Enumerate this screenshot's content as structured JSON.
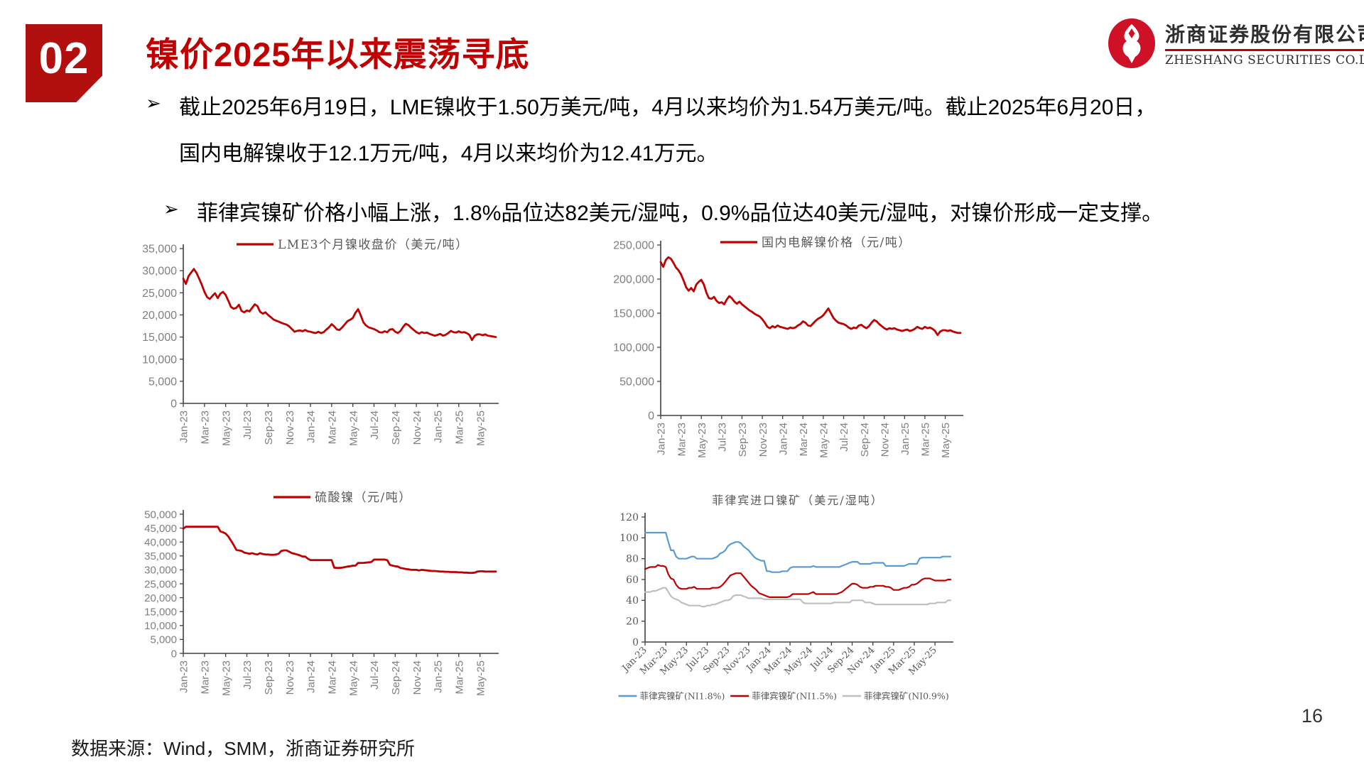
{
  "header": {
    "section_number": "02",
    "title": "镍价2025年以来震荡寻底",
    "logo_cn": "浙商证券股份有限公司",
    "logo_en": "ZHESHANG SECURITIES CO.LTD"
  },
  "bullets": {
    "marker": "➢",
    "b1_line1": "截止2025年6月19日，LME镍收于1.50万美元/吨，4月以来均价为1.54万美元/吨。截止2025年6月20日，",
    "b1_line2": "国内电解镍收于12.1万元/吨，4月以来均价为12.41万元。",
    "b2": "菲律宾镍矿价格小幅上涨，1.8%品位达82美元/湿吨，0.9%品位达40美元/湿吨，对镍价形成一定支撑。"
  },
  "footer": {
    "source": "数据来源：Wind，SMM，浙商证券研究所",
    "page_number": "16"
  },
  "colors": {
    "accent_red": "#C00000",
    "line_blue": "#5B9BD5",
    "line_gray": "#BFBFBF"
  },
  "chart_data": [
    {
      "id": "lme-3m-nickel-close",
      "type": "line",
      "legend_position": "top",
      "ylim": [
        0,
        35000
      ],
      "ystep": 5000,
      "y_format": "comma",
      "x_tick_labels": [
        "Jan-23",
        "Mar-23",
        "May-23",
        "Jul-23",
        "Sep-23",
        "Nov-23",
        "Jan-24",
        "Mar-24",
        "May-24",
        "Jul-24",
        "Sep-24",
        "Nov-24",
        "Jan-25",
        "Mar-25",
        "May-25"
      ],
      "series": [
        {
          "name": "LME3个月镍收盘价（美元/吨）",
          "color": "#C00000",
          "values": [
            28200,
            27000,
            28800,
            29600,
            30400,
            29500,
            28200,
            26800,
            25200,
            24000,
            23600,
            24300,
            24900,
            23800,
            24800,
            25200,
            24500,
            23200,
            21800,
            21400,
            21600,
            22300,
            20900,
            20600,
            21000,
            20800,
            21600,
            22400,
            22000,
            20700,
            20300,
            20600,
            20000,
            19500,
            19000,
            18700,
            18500,
            18200,
            18000,
            17800,
            17400,
            16800,
            16200,
            16400,
            16500,
            16300,
            16600,
            16300,
            16200,
            16000,
            15900,
            16200,
            15900,
            16100,
            16700,
            17200,
            17900,
            17400,
            16700,
            16600,
            17200,
            17900,
            18600,
            18900,
            19300,
            20500,
            21300,
            19900,
            18300,
            17600,
            17200,
            17000,
            16800,
            16500,
            16100,
            16000,
            16300,
            16100,
            16700,
            16800,
            16200,
            15900,
            16400,
            17300,
            18000,
            17700,
            17100,
            16600,
            16100,
            15800,
            16100,
            15900,
            16000,
            15700,
            15500,
            15300,
            15500,
            15700,
            15300,
            15500,
            15900,
            16400,
            16100,
            16000,
            16300,
            16000,
            16100,
            15900,
            15500,
            14300,
            15300,
            15600,
            15600,
            15400,
            15600,
            15300,
            15200,
            15100,
            15000
          ]
        }
      ]
    },
    {
      "id": "cn-electrolytic-nickel",
      "type": "line",
      "legend_position": "top",
      "ylim": [
        0,
        250000
      ],
      "ystep": 50000,
      "y_format": "comma",
      "x_tick_labels": [
        "Jan-23",
        "Mar-23",
        "May-23",
        "Jul-23",
        "Sep-23",
        "Nov-23",
        "Jan-24",
        "Mar-24",
        "May-24",
        "Jul-24",
        "Sep-24",
        "Nov-24",
        "Jan-25",
        "Mar-25",
        "May-25"
      ],
      "series": [
        {
          "name": "国内电解镍价格（元/吨）",
          "color": "#C00000",
          "values": [
            225000,
            218000,
            228000,
            232000,
            230000,
            224000,
            217000,
            213000,
            207000,
            198000,
            188000,
            183000,
            187000,
            182000,
            192000,
            196000,
            199000,
            192000,
            180000,
            172000,
            171000,
            174000,
            168000,
            165000,
            166000,
            163000,
            170000,
            175000,
            172000,
            167000,
            164000,
            167000,
            163000,
            160000,
            157000,
            154000,
            152000,
            149000,
            147000,
            145000,
            141000,
            136000,
            130000,
            128000,
            131000,
            129000,
            132000,
            130000,
            129000,
            128000,
            127000,
            129000,
            128000,
            129000,
            132000,
            134000,
            138000,
            136000,
            132000,
            131000,
            135000,
            139000,
            142000,
            144000,
            147000,
            152000,
            157000,
            150000,
            143000,
            139000,
            136000,
            135000,
            134000,
            132000,
            129000,
            127000,
            129000,
            128000,
            132000,
            133000,
            130000,
            128000,
            131000,
            136000,
            140000,
            138000,
            134000,
            131000,
            128000,
            126000,
            128000,
            127000,
            128000,
            126000,
            125000,
            124000,
            125000,
            126000,
            124000,
            125000,
            127000,
            130000,
            128000,
            127000,
            130000,
            128000,
            129000,
            127000,
            124000,
            118000,
            123000,
            125000,
            125000,
            124000,
            125000,
            123000,
            122000,
            121000,
            121000
          ]
        }
      ]
    },
    {
      "id": "nickel-sulfate",
      "type": "line",
      "legend_position": "top",
      "ylim": [
        0,
        50000
      ],
      "ystep": 5000,
      "y_format": "comma",
      "x_tick_labels": [
        "Jan-23",
        "Mar-23",
        "May-23",
        "Jul-23",
        "Sep-23",
        "Nov-23",
        "Jan-24",
        "Mar-24",
        "May-24",
        "Jul-24",
        "Sep-24",
        "Nov-24",
        "Jan-25",
        "Mar-25",
        "May-25"
      ],
      "series": [
        {
          "name": "硫酸镍（元/吨）",
          "color": "#C00000",
          "values": [
            44800,
            45500,
            45500,
            45500,
            45500,
            45500,
            45500,
            45500,
            45500,
            45500,
            45500,
            45500,
            45500,
            45500,
            43800,
            43500,
            43000,
            42000,
            40500,
            39000,
            37200,
            37000,
            36800,
            36200,
            36000,
            35800,
            36000,
            35700,
            35500,
            36000,
            35700,
            35500,
            35500,
            35400,
            35400,
            35500,
            35800,
            36800,
            37000,
            37000,
            36500,
            36000,
            35800,
            35500,
            35200,
            34800,
            34800,
            34000,
            33500,
            33500,
            33500,
            33500,
            33500,
            33500,
            33500,
            33500,
            33500,
            30800,
            30700,
            30700,
            30800,
            31000,
            31200,
            31300,
            31500,
            31500,
            32500,
            32500,
            32500,
            32600,
            32700,
            32800,
            33700,
            33700,
            33700,
            33700,
            33700,
            33500,
            31800,
            31500,
            31300,
            31200,
            30700,
            30500,
            30300,
            30200,
            30000,
            30000,
            30000,
            29800,
            30000,
            29900,
            29800,
            29700,
            29600,
            29600,
            29500,
            29400,
            29400,
            29300,
            29300,
            29200,
            29200,
            29200,
            29100,
            29100,
            29000,
            29000,
            28900,
            28900,
            29000,
            29400,
            29500,
            29500,
            29400,
            29400,
            29400,
            29400,
            29400
          ]
        }
      ]
    },
    {
      "id": "philippine-nickel-ore",
      "type": "line",
      "title": "菲律宾进口镍矿（美元/湿吨）",
      "legend_position": "bottom",
      "ylim": [
        0,
        120
      ],
      "ystep": 20,
      "y_format": "plain",
      "x_tick_labels": [
        "Jan-23",
        "Mar-23",
        "May-23",
        "Jul-23",
        "Sep-23",
        "Nov-23",
        "Jan-24",
        "Mar-24",
        "May-24",
        "Jul-24",
        "Sep-24",
        "Nov-24",
        "Jan-25",
        "Mar-25",
        "May-25"
      ],
      "series": [
        {
          "name": "菲律宾镍矿(NI1.8%)",
          "color": "#5B9BD5",
          "values": [
            105,
            105,
            105,
            105,
            105,
            105,
            105,
            105,
            105,
            96,
            88,
            88,
            82,
            80,
            80,
            80,
            80,
            81,
            82,
            82,
            80,
            80,
            80,
            80,
            80,
            80,
            80,
            81,
            82,
            85,
            86,
            88,
            92,
            94,
            95,
            96,
            96,
            95,
            92,
            90,
            88,
            85,
            82,
            80,
            79,
            78,
            78,
            68,
            68,
            67,
            67,
            67,
            67,
            68,
            68,
            68,
            71,
            72,
            72,
            72,
            72,
            72,
            72,
            72,
            72,
            73,
            72,
            72,
            72,
            72,
            72,
            72,
            72,
            72,
            72,
            72,
            73,
            74,
            75,
            76,
            77,
            77,
            77,
            75,
            75,
            75,
            75,
            75,
            76,
            76,
            76,
            76,
            76,
            73,
            73,
            73,
            73,
            73,
            73,
            73,
            73,
            74,
            75,
            75,
            75,
            75,
            80,
            81,
            81,
            81,
            81,
            81,
            81,
            81,
            81,
            82,
            82,
            82,
            82
          ]
        },
        {
          "name": "菲律宾镍矿(NI1.5%)",
          "color": "#C00000",
          "values": [
            70,
            71,
            72,
            72,
            72,
            74,
            73,
            73,
            72,
            65,
            61,
            60,
            55,
            52,
            51,
            51,
            51,
            52,
            52,
            53,
            51,
            51,
            51,
            51,
            51,
            51,
            52,
            52,
            52,
            53,
            55,
            58,
            61,
            64,
            65,
            66,
            66,
            66,
            63,
            60,
            57,
            54,
            52,
            50,
            47,
            46,
            45,
            44,
            43,
            43,
            43,
            43,
            43,
            43,
            43,
            43,
            44,
            46,
            46,
            46,
            46,
            46,
            46,
            46,
            47,
            48,
            46,
            46,
            46,
            46,
            46,
            46,
            46,
            46,
            46,
            47,
            48,
            50,
            52,
            54,
            56,
            56,
            55,
            53,
            52,
            52,
            52,
            53,
            53,
            54,
            54,
            54,
            54,
            53,
            53,
            52,
            50,
            50,
            50,
            51,
            52,
            52,
            53,
            55,
            55,
            56,
            58,
            60,
            61,
            61,
            61,
            60,
            59,
            59,
            59,
            59,
            59,
            60,
            60
          ]
        },
        {
          "name": "菲律宾镍矿(NI0.9%)",
          "color": "#BFBFBF",
          "values": [
            48,
            48,
            48,
            49,
            49,
            50,
            51,
            52,
            52,
            48,
            44,
            42,
            41,
            40,
            38,
            37,
            36,
            35,
            35,
            35,
            35,
            35,
            34,
            34,
            35,
            35,
            36,
            36,
            37,
            38,
            39,
            40,
            40,
            41,
            44,
            45,
            45,
            45,
            44,
            43,
            42,
            42,
            42,
            42,
            42,
            42,
            41,
            41,
            41,
            41,
            41,
            41,
            41,
            41,
            41,
            41,
            41,
            41,
            41,
            41,
            41,
            38,
            37,
            37,
            37,
            37,
            37,
            37,
            37,
            37,
            37,
            37,
            37,
            38,
            38,
            38,
            38,
            38,
            38,
            38,
            40,
            40,
            40,
            40,
            40,
            38,
            38,
            38,
            37,
            36,
            36,
            36,
            36,
            36,
            36,
            36,
            36,
            36,
            36,
            36,
            36,
            36,
            36,
            36,
            36,
            36,
            36,
            36,
            36,
            36,
            37,
            37,
            37,
            38,
            38,
            38,
            38,
            40,
            40
          ]
        }
      ]
    }
  ]
}
